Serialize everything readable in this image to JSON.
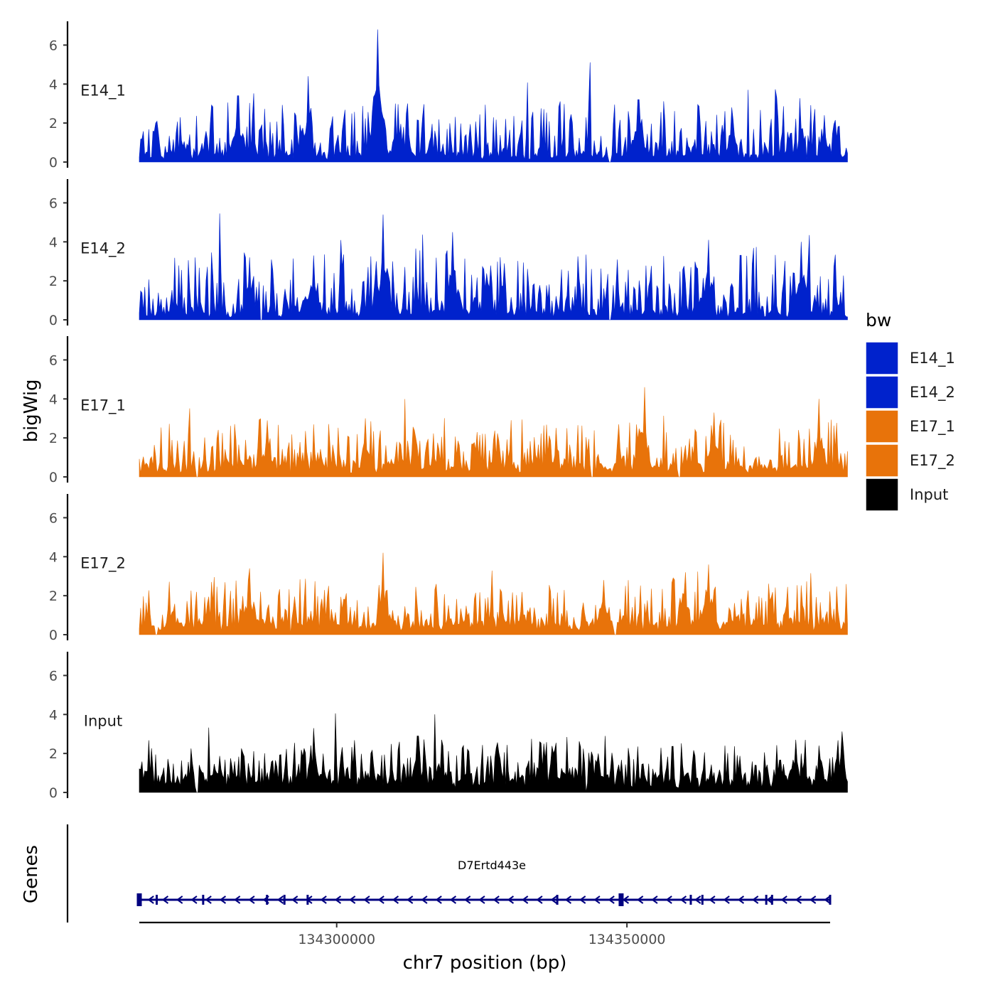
{
  "chart_data": {
    "type": "area",
    "chromosome": "chr7",
    "ylabel": "bigWig",
    "xlabel": "chr7 position (bp)",
    "xlim": [
      134266000,
      134385000
    ],
    "ylim": [
      0,
      7
    ],
    "yticks": [
      0,
      2,
      4,
      6
    ],
    "xticks": [
      {
        "value": 134300000,
        "label": "134300000"
      },
      {
        "value": 134350000,
        "label": "134350000"
      }
    ],
    "data_range": [
      134266000,
      134388000
    ],
    "legend": {
      "title": "bw",
      "position": "right",
      "entries": [
        {
          "name": "E14_1",
          "color": "#0022cc"
        },
        {
          "name": "E14_2",
          "color": "#0022cc"
        },
        {
          "name": "E17_1",
          "color": "#e8730a"
        },
        {
          "name": "E17_2",
          "color": "#e8730a"
        },
        {
          "name": "Input",
          "color": "#000000"
        }
      ]
    },
    "series": [
      {
        "name": "E14_1",
        "color": "#0022cc",
        "baseline": 0.35,
        "noise": 1.3,
        "seed": 11,
        "peaks": [
          [
            134307000,
            6.8
          ],
          [
            134295000,
            4.4
          ],
          [
            134283000,
            3.4
          ],
          [
            134352000,
            3.2
          ],
          [
            134368000,
            2.8
          ],
          [
            134384000,
            2.4
          ]
        ],
        "gaps": [
          134347000
        ]
      },
      {
        "name": "E14_2",
        "color": "#0022cc",
        "baseline": 0.35,
        "noise": 1.5,
        "seed": 23,
        "peaks": [
          [
            134308000,
            5.4
          ],
          [
            134320000,
            4.5
          ],
          [
            134364000,
            4.1
          ],
          [
            134380000,
            4.0
          ],
          [
            134285000,
            3.2
          ],
          [
            134296000,
            3.3
          ]
        ],
        "gaps": [
          134287000,
          134347000
        ]
      },
      {
        "name": "E17_1",
        "color": "#e8730a",
        "baseline": 0.55,
        "noise": 1.1,
        "seed": 37,
        "peaks": [
          [
            134353000,
            4.6
          ],
          [
            134383000,
            4.0
          ],
          [
            134305000,
            3.0
          ],
          [
            134288000,
            2.9
          ],
          [
            134365000,
            3.3
          ]
        ],
        "gaps": [
          134276000,
          134292000,
          134344000,
          134359000
        ]
      },
      {
        "name": "E17_2",
        "color": "#e8730a",
        "baseline": 0.55,
        "noise": 1.1,
        "seed": 53,
        "peaks": [
          [
            134308000,
            4.2
          ],
          [
            134364000,
            3.6
          ],
          [
            134285000,
            3.4
          ],
          [
            134346000,
            2.8
          ],
          [
            134360000,
            3.2
          ]
        ],
        "gaps": [
          134269000,
          134292000,
          134348000
        ]
      },
      {
        "name": "Input",
        "color": "#000000",
        "baseline": 0.7,
        "noise": 1.0,
        "seed": 71,
        "peaks": [
          [
            134296000,
            3.3
          ],
          [
            134314000,
            2.9
          ],
          [
            134318000,
            2.7
          ],
          [
            134335000,
            2.6
          ],
          [
            134379000,
            2.7
          ]
        ],
        "gaps": [
          134276000,
          134343000
        ]
      }
    ],
    "genes": {
      "title": "Genes",
      "name": "D7Ertd443e",
      "strand": "-",
      "start": 134266000,
      "end": 134385000,
      "color": "#000080",
      "exons": [
        134266000,
        134269000,
        134277000,
        134288000,
        134291000,
        134295000,
        134338000,
        134349000,
        134361000,
        134363000,
        134374000,
        134375000,
        134385000
      ]
    }
  }
}
